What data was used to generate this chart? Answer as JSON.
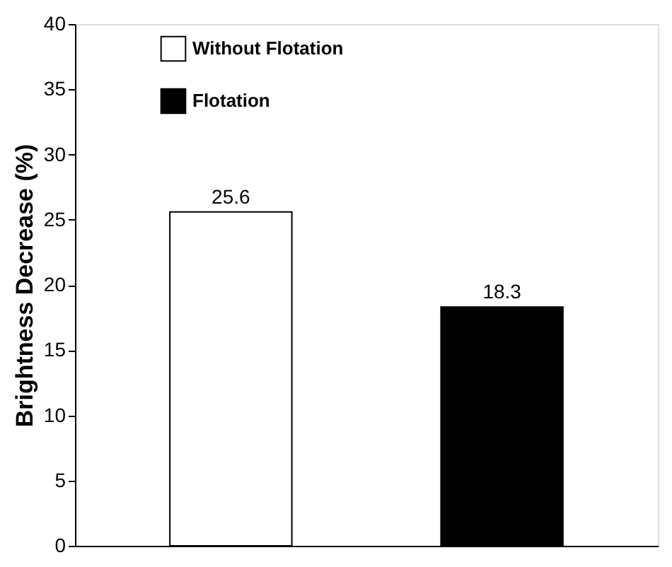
{
  "chart_data": {
    "type": "bar",
    "ylabel": "Brightness Decrease (%)",
    "categories": [
      null,
      null
    ],
    "series": [
      {
        "name": "Without Flotation",
        "color": "#ffffff",
        "values": [
          25.6,
          null
        ]
      },
      {
        "name": "Flotation",
        "color": "#000000",
        "values": [
          null,
          18.3
        ]
      }
    ],
    "ylim": [
      0,
      40
    ],
    "yticks": [
      0,
      5,
      10,
      15,
      20,
      25,
      30,
      35,
      40
    ],
    "data_labels": true,
    "legend": "top",
    "grid": false
  }
}
